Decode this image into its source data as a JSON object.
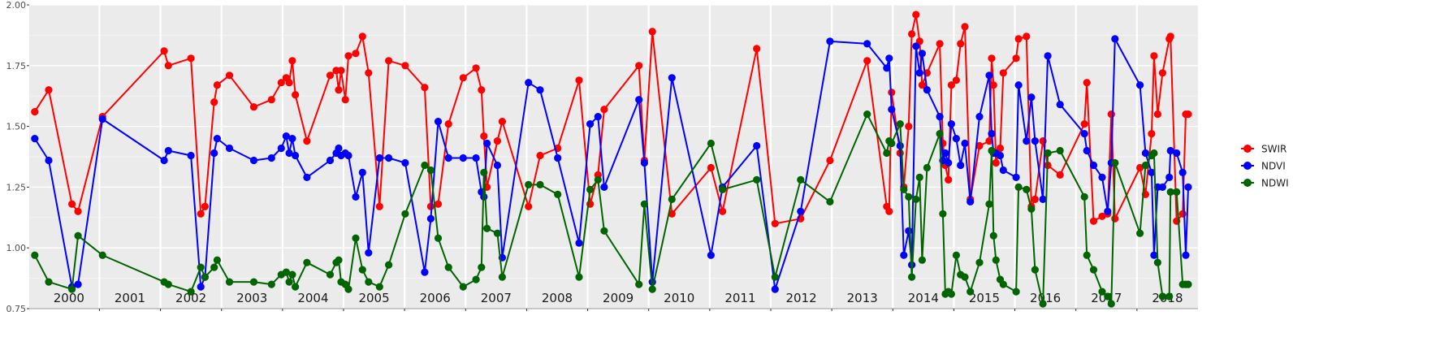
{
  "chart_data": {
    "type": "line",
    "title": "",
    "xlabel": "",
    "ylabel": "",
    "xlim": [
      1999.85,
      2019.0
    ],
    "ylim": [
      0.75,
      2.0
    ],
    "y_ticks": [
      "0.75",
      "1.00",
      "1.25",
      "1.50",
      "1.75",
      "2.00"
    ],
    "year_labels": [
      "2000",
      "2001",
      "2002",
      "2003",
      "2004",
      "2005",
      "2006",
      "2007",
      "2008",
      "2009",
      "2010",
      "2011",
      "2012",
      "2013",
      "2014",
      "2015",
      "2016",
      "2017",
      "2018"
    ],
    "grid": true,
    "legend_position": "right",
    "series": [
      {
        "name": "SWIR",
        "color": "#ff0000",
        "x": [
          1999.94,
          2000.17,
          2000.55,
          2000.65,
          2001.05,
          2002.06,
          2002.13,
          2002.5,
          2002.66,
          2002.73,
          2002.88,
          2002.93,
          2003.13,
          2003.53,
          2003.82,
          2003.98,
          2004.06,
          2004.11,
          2004.16,
          2004.21,
          2004.4,
          2004.78,
          2004.88,
          2004.92,
          2004.96,
          2005.03,
          2005.08,
          2005.2,
          2005.31,
          2005.41,
          2005.59,
          2005.74,
          2006.01,
          2006.33,
          2006.43,
          2006.55,
          2006.72,
          2006.96,
          2007.17,
          2007.26,
          2007.3,
          2007.35,
          2007.52,
          2007.6,
          2008.03,
          2008.22,
          2008.51,
          2008.86,
          2009.04,
          2009.17,
          2009.27,
          2009.84,
          2009.93,
          2010.06,
          2010.38,
          2011.02,
          2011.21,
          2011.77,
          2012.07,
          2012.49,
          2012.97,
          2013.58,
          2013.9,
          2013.94,
          2013.98,
          2014.12,
          2014.18,
          2014.26,
          2014.31,
          2014.38,
          2014.44,
          2014.48,
          2014.56,
          2014.77,
          2014.82,
          2014.86,
          2014.91,
          2014.96,
          2015.04,
          2015.11,
          2015.18,
          2015.27,
          2015.42,
          2015.58,
          2015.62,
          2015.65,
          2015.69,
          2015.76,
          2015.81,
          2016.02,
          2016.06,
          2016.19,
          2016.27,
          2016.33,
          2016.46,
          2016.54,
          2016.74,
          2017.14,
          2017.18,
          2017.29,
          2017.43,
          2017.52,
          2017.58,
          2017.64,
          2018.05,
          2018.14,
          2018.24,
          2018.28,
          2018.34,
          2018.42,
          2018.53,
          2018.55,
          2018.65,
          2018.75,
          2018.8,
          2018.84
        ]
      },
      {
        "name": "NDVI",
        "color": "#0000ff",
        "x": [
          1999.94,
          2000.17,
          2000.55,
          2000.65,
          2001.05,
          2002.06,
          2002.13,
          2002.5,
          2002.66,
          2002.73,
          2002.88,
          2002.93,
          2003.13,
          2003.53,
          2003.82,
          2003.98,
          2004.06,
          2004.11,
          2004.16,
          2004.21,
          2004.4,
          2004.78,
          2004.88,
          2004.92,
          2004.96,
          2005.03,
          2005.08,
          2005.2,
          2005.31,
          2005.41,
          2005.59,
          2005.74,
          2006.01,
          2006.33,
          2006.43,
          2006.55,
          2006.72,
          2006.96,
          2007.17,
          2007.26,
          2007.3,
          2007.35,
          2007.52,
          2007.6,
          2008.03,
          2008.22,
          2008.51,
          2008.86,
          2009.04,
          2009.17,
          2009.27,
          2009.84,
          2009.93,
          2010.06,
          2010.38,
          2011.02,
          2011.21,
          2011.77,
          2012.07,
          2012.49,
          2012.97,
          2013.58,
          2013.9,
          2013.94,
          2013.98,
          2014.12,
          2014.18,
          2014.26,
          2014.31,
          2014.38,
          2014.44,
          2014.48,
          2014.56,
          2014.77,
          2014.82,
          2014.86,
          2014.91,
          2014.96,
          2015.04,
          2015.11,
          2015.18,
          2015.27,
          2015.42,
          2015.58,
          2015.62,
          2015.65,
          2015.69,
          2015.76,
          2015.81,
          2016.02,
          2016.06,
          2016.19,
          2016.27,
          2016.33,
          2016.46,
          2016.54,
          2016.74,
          2017.14,
          2017.18,
          2017.29,
          2017.43,
          2017.52,
          2017.58,
          2017.64,
          2018.05,
          2018.14,
          2018.24,
          2018.28,
          2018.34,
          2018.42,
          2018.53,
          2018.55,
          2018.65,
          2018.75,
          2018.8,
          2018.84
        ]
      },
      {
        "name": "NDWI",
        "color": "#006400",
        "x": [
          1999.94,
          2000.17,
          2000.55,
          2000.65,
          2001.05,
          2002.06,
          2002.13,
          2002.5,
          2002.66,
          2002.73,
          2002.88,
          2002.93,
          2003.13,
          2003.53,
          2003.82,
          2003.98,
          2004.06,
          2004.11,
          2004.16,
          2004.21,
          2004.4,
          2004.78,
          2004.88,
          2004.92,
          2004.96,
          2005.03,
          2005.08,
          2005.2,
          2005.31,
          2005.41,
          2005.59,
          2005.74,
          2006.01,
          2006.33,
          2006.43,
          2006.55,
          2006.72,
          2006.96,
          2007.17,
          2007.26,
          2007.3,
          2007.35,
          2007.52,
          2007.6,
          2008.03,
          2008.22,
          2008.51,
          2008.86,
          2009.04,
          2009.17,
          2009.27,
          2009.84,
          2009.93,
          2010.06,
          2010.38,
          2011.02,
          2011.21,
          2011.77,
          2012.07,
          2012.49,
          2012.97,
          2013.58,
          2013.9,
          2013.94,
          2013.98,
          2014.12,
          2014.18,
          2014.26,
          2014.31,
          2014.38,
          2014.44,
          2014.48,
          2014.56,
          2014.77,
          2014.82,
          2014.86,
          2014.91,
          2014.96,
          2015.04,
          2015.11,
          2015.18,
          2015.27,
          2015.42,
          2015.58,
          2015.62,
          2015.65,
          2015.69,
          2015.76,
          2015.81,
          2016.02,
          2016.06,
          2016.19,
          2016.27,
          2016.33,
          2016.46,
          2016.54,
          2016.74,
          2017.14,
          2017.18,
          2017.29,
          2017.43,
          2017.52,
          2017.58,
          2017.64,
          2018.05,
          2018.14,
          2018.24,
          2018.28,
          2018.34,
          2018.42,
          2018.53,
          2018.55,
          2018.65,
          2018.75,
          2018.8,
          2018.84
        ]
      }
    ],
    "values": {
      "SWIR": [
        1.56,
        1.65,
        1.18,
        1.15,
        1.54,
        1.81,
        1.75,
        1.78,
        1.14,
        1.17,
        1.6,
        1.67,
        1.71,
        1.58,
        1.61,
        1.68,
        1.7,
        1.68,
        1.77,
        1.63,
        1.44,
        1.71,
        1.73,
        1.65,
        1.73,
        1.61,
        1.79,
        1.8,
        1.87,
        1.72,
        1.17,
        1.77,
        1.75,
        1.66,
        1.17,
        1.18,
        1.51,
        1.7,
        1.74,
        1.65,
        1.46,
        1.25,
        1.44,
        1.52,
        1.17,
        1.38,
        1.41,
        1.69,
        1.18,
        1.3,
        1.57,
        1.75,
        1.36,
        1.89,
        1.14,
        1.33,
        1.15,
        1.82,
        1.1,
        1.12,
        1.36,
        1.77,
        1.17,
        1.15,
        1.64,
        1.39,
        1.25,
        1.5,
        1.88,
        1.96,
        1.85,
        1.67,
        1.72,
        1.84,
        1.43,
        1.34,
        1.28,
        1.67,
        1.69,
        1.84,
        1.91,
        1.2,
        1.42,
        1.44,
        1.78,
        1.67,
        1.35,
        1.41,
        1.72,
        1.78,
        1.86,
        1.87,
        1.17,
        1.2,
        1.44,
        1.34,
        1.3,
        1.51,
        1.68,
        1.11,
        1.13,
        1.14,
        1.55,
        1.12,
        1.33,
        1.22,
        1.47,
        1.79,
        1.55,
        1.72,
        1.86,
        1.87,
        1.11,
        1.14,
        1.55,
        1.55
      ],
      "NDVI": [
        1.45,
        1.36,
        0.84,
        0.85,
        1.53,
        1.36,
        1.4,
        1.38,
        0.84,
        0.88,
        1.39,
        1.45,
        1.41,
        1.36,
        1.37,
        1.41,
        1.46,
        1.39,
        1.45,
        1.38,
        1.29,
        1.36,
        1.39,
        1.41,
        1.38,
        1.39,
        1.38,
        1.21,
        1.31,
        0.98,
        1.37,
        1.37,
        1.35,
        0.9,
        1.12,
        1.52,
        1.37,
        1.37,
        1.37,
        1.23,
        1.21,
        1.43,
        1.34,
        0.96,
        1.68,
        1.65,
        1.37,
        1.02,
        1.51,
        1.54,
        1.25,
        1.61,
        1.35,
        0.86,
        1.7,
        0.97,
        1.25,
        1.42,
        0.83,
        1.15,
        1.85,
        1.84,
        1.74,
        1.78,
        1.57,
        1.42,
        0.97,
        1.07,
        0.93,
        1.83,
        1.72,
        1.8,
        1.65,
        1.54,
        1.36,
        1.39,
        1.35,
        1.51,
        1.45,
        1.34,
        1.43,
        1.19,
        1.54,
        1.71,
        1.47,
        1.39,
        1.39,
        1.38,
        1.32,
        1.29,
        1.67,
        1.44,
        1.62,
        1.44,
        1.2,
        1.79,
        1.59,
        1.47,
        1.4,
        1.34,
        1.29,
        1.15,
        1.35,
        1.86,
        1.67,
        1.39,
        1.31,
        0.97,
        1.25,
        1.25,
        1.29,
        1.4,
        1.39,
        1.31,
        0.97,
        1.25
      ],
      "NDWI": [
        0.97,
        0.86,
        0.83,
        1.05,
        0.97,
        0.86,
        0.85,
        0.82,
        0.92,
        0.88,
        0.92,
        0.95,
        0.86,
        0.86,
        0.85,
        0.89,
        0.9,
        0.86,
        0.89,
        0.84,
        0.94,
        0.89,
        0.94,
        0.95,
        0.86,
        0.85,
        0.83,
        1.04,
        0.91,
        0.86,
        0.84,
        0.93,
        1.14,
        1.34,
        1.32,
        1.04,
        0.92,
        0.84,
        0.87,
        0.92,
        1.31,
        1.08,
        1.06,
        0.88,
        1.26,
        1.26,
        1.22,
        0.88,
        1.24,
        1.28,
        1.07,
        0.85,
        1.18,
        0.83,
        1.2,
        1.43,
        1.24,
        1.28,
        0.88,
        1.28,
        1.19,
        1.55,
        1.39,
        1.44,
        1.43,
        1.51,
        1.24,
        1.21,
        0.88,
        1.2,
        1.29,
        0.95,
        1.33,
        1.47,
        1.14,
        0.81,
        0.82,
        0.81,
        0.97,
        0.89,
        0.88,
        0.82,
        0.94,
        1.18,
        1.4,
        1.05,
        0.95,
        0.87,
        0.85,
        0.82,
        1.25,
        1.24,
        1.16,
        0.91,
        0.77,
        1.39,
        1.4,
        1.21,
        0.97,
        0.91,
        0.82,
        0.8,
        0.77,
        1.35,
        1.06,
        1.34,
        1.38,
        1.39,
        0.94,
        0.8,
        0.8,
        1.23,
        1.23,
        0.85,
        0.85,
        0.85
      ]
    }
  }
}
